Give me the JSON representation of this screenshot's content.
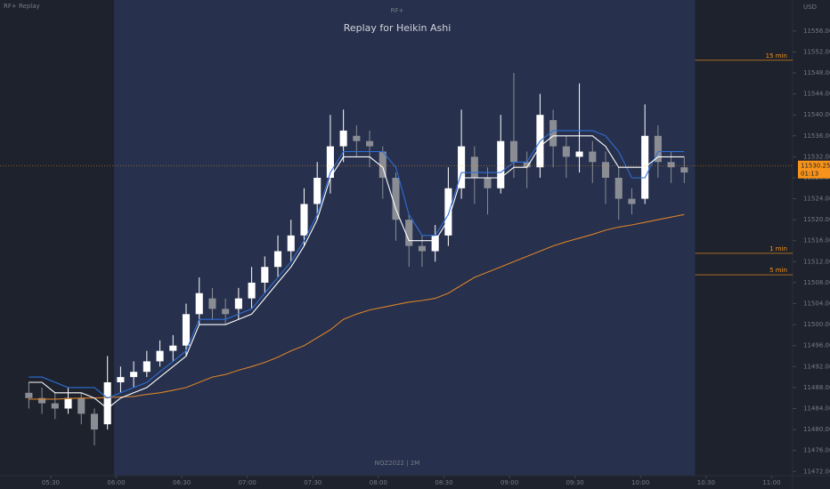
{
  "chart_data": {
    "type": "candlestick",
    "header": "RF+ Replay",
    "subtitle": "RF+",
    "title": "Replay for Heikin Ashi",
    "symbol": "NQZ2022 | 2M",
    "currency": "USD",
    "x": [
      320,
      326,
      332,
      338,
      344,
      350,
      356,
      362,
      368,
      374,
      380,
      386,
      392,
      398,
      404,
      410,
      416,
      422,
      428,
      434,
      440,
      446,
      452,
      458,
      464,
      470,
      476,
      482,
      488,
      494,
      500,
      506,
      512,
      518,
      524,
      530,
      536,
      542,
      548,
      554,
      560,
      566,
      572,
      578,
      584,
      590,
      596,
      602,
      608,
      614,
      620
    ],
    "open": [
      11487,
      11486,
      11485,
      11484,
      11486,
      11483,
      11481,
      11489,
      11490,
      11491,
      11493,
      11495,
      11496,
      11502,
      11505,
      11503,
      11503,
      11505,
      11508,
      11511,
      11514,
      11517,
      11523,
      11528,
      11534,
      11536,
      11535,
      11533,
      11528,
      11520,
      11515,
      11514,
      11517,
      11526,
      11532,
      11528,
      11526,
      11535,
      11531,
      11530,
      11539,
      11534,
      11532,
      11533,
      11531,
      11528,
      11524,
      11524,
      11536,
      11531,
      11530
    ],
    "high": [
      11489,
      11488,
      11487,
      11488,
      11487,
      11484,
      11494,
      11492,
      11493,
      11495,
      11497,
      11498,
      11504,
      11509,
      11507,
      11505,
      11507,
      11511,
      11513,
      11517,
      11520,
      11526,
      11531,
      11540,
      11541,
      11538,
      11537,
      11534,
      11529,
      11521,
      11517,
      11519,
      11530,
      11541,
      11534,
      11530,
      11540,
      11548,
      11533,
      11544,
      11541,
      11536,
      11546,
      11535,
      11533,
      11530,
      11526,
      11542,
      11538,
      11533,
      11532
    ],
    "low": [
      11484,
      11483,
      11482,
      11483,
      11481,
      11477,
      11480,
      11487,
      11488,
      11490,
      11492,
      11493,
      11494,
      11500,
      11501,
      11500,
      11501,
      11503,
      11506,
      11509,
      11512,
      11515,
      11520,
      11525,
      11531,
      11532,
      11530,
      11524,
      11516,
      11511,
      11511,
      11512,
      11515,
      11524,
      11523,
      11521,
      11525,
      11528,
      11526,
      11528,
      11530,
      11528,
      11529,
      11527,
      11523,
      11520,
      11521,
      11523,
      11528,
      11527,
      11527
    ],
    "close": [
      11486,
      11485,
      11484,
      11486,
      11483,
      11480,
      11489,
      11490,
      11491,
      11493,
      11495,
      11496,
      11502,
      11506,
      11503,
      11502,
      11505,
      11508,
      11511,
      11514,
      11517,
      11523,
      11528,
      11534,
      11537,
      11535,
      11534,
      11528,
      11520,
      11515,
      11514,
      11517,
      11526,
      11534,
      11528,
      11526,
      11535,
      11531,
      11530,
      11540,
      11534,
      11532,
      11533,
      11531,
      11528,
      11524,
      11523,
      11536,
      11531,
      11530,
      11529
    ],
    "up_color": "#ffffff",
    "down_color": "#8a8d94",
    "lines": [
      {
        "color": "#d9822b",
        "values": [
          11485.8,
          11485.8,
          11485.8,
          11485.9,
          11486,
          11486,
          11486.1,
          11486.2,
          11486.3,
          11486.7,
          11487,
          11487.5,
          11488,
          11489,
          11490,
          11490.5,
          11491.3,
          11492,
          11492.8,
          11493.8,
          11495,
          11496,
          11497.5,
          11499,
          11501,
          11502,
          11502.8,
          11503.3,
          11503.8,
          11504.3,
          11504.6,
          11505,
          11506,
          11507.5,
          11509,
          11510,
          11511,
          11512,
          11513,
          11514,
          11515,
          11515.8,
          11516.5,
          11517.2,
          11518,
          11518.6,
          11519,
          11519.5,
          11520,
          11520.5,
          11521
        ]
      },
      {
        "color": "#2f6fd6",
        "values": [
          11490,
          11490,
          11489,
          11488,
          11488,
          11488,
          11486,
          11487,
          11488,
          11489,
          11491,
          11493,
          11495,
          11501,
          11501,
          11501,
          11502,
          11503,
          11506,
          11509,
          11512,
          11516,
          11521,
          11529,
          11533,
          11533,
          11533,
          11533,
          11530,
          11521,
          11517,
          11517,
          11521,
          11529,
          11529,
          11529,
          11529,
          11531,
          11531,
          11535,
          11537,
          11537,
          11537,
          11537,
          11536,
          11533,
          11528,
          11528,
          11533,
          11533,
          11533
        ]
      },
      {
        "color": "#ffffff",
        "values": [
          11489,
          11489,
          11487,
          11487,
          11487,
          11486,
          11484,
          11486,
          11487,
          11488,
          11490,
          11492,
          11494,
          11500,
          11500,
          11500,
          11501,
          11502,
          11505,
          11508,
          11511,
          11515,
          11520,
          11528,
          11532,
          11532,
          11532,
          11530,
          11522,
          11516,
          11516,
          11516,
          11520,
          11528,
          11528,
          11528,
          11528,
          11530,
          11530,
          11534,
          11536,
          11536,
          11536,
          11536,
          11534,
          11530,
          11530,
          11530,
          11532,
          11532,
          11532
        ]
      }
    ],
    "replay_range": [
      359,
      625
    ],
    "levels": [
      {
        "label": "15 min",
        "value": 11550.4
      },
      {
        "label": "1 min",
        "value": 11513.6
      },
      {
        "label": "5 min",
        "value": 11509.5
      }
    ],
    "level_color": "#f7931a",
    "last_price": {
      "value": 11530.25,
      "countdown": "01:13"
    },
    "xlim": [
      306.8,
      669.6
    ],
    "ylim": [
      11471.2,
      11561.9
    ],
    "xticks": [
      {
        "value": 330,
        "label": "05:30"
      },
      {
        "value": 360,
        "label": "06:00"
      },
      {
        "value": 390,
        "label": "06:30"
      },
      {
        "value": 420,
        "label": "07:00"
      },
      {
        "value": 450,
        "label": "07:30"
      },
      {
        "value": 480,
        "label": "08:00"
      },
      {
        "value": 510,
        "label": "08:30"
      },
      {
        "value": 540,
        "label": "09:00"
      },
      {
        "value": 570,
        "label": "09:30"
      },
      {
        "value": 600,
        "label": "10:00"
      },
      {
        "value": 630,
        "label": "10:30"
      },
      {
        "value": 660,
        "label": "11:00"
      }
    ],
    "yticks": [
      {
        "value": 11472,
        "label": "11472.00"
      },
      {
        "value": 11476,
        "label": "11476.00"
      },
      {
        "value": 11480,
        "label": "11480.00"
      },
      {
        "value": 11484,
        "label": "11484.00"
      },
      {
        "value": 11488,
        "label": "11488.00"
      },
      {
        "value": 11492,
        "label": "11492.00"
      },
      {
        "value": 11496,
        "label": "11496.00"
      },
      {
        "value": 11500,
        "label": "11500.00"
      },
      {
        "value": 11504,
        "label": "11504.00"
      },
      {
        "value": 11508,
        "label": "11508.00"
      },
      {
        "value": 11512,
        "label": "11512.00"
      },
      {
        "value": 11516,
        "label": "11516.00"
      },
      {
        "value": 11520,
        "label": "11520.00"
      },
      {
        "value": 11524,
        "label": "11524.00"
      },
      {
        "value": 11528,
        "label": "11528.00"
      },
      {
        "value": 11532,
        "label": "11532.00"
      },
      {
        "value": 11536,
        "label": "11536.00"
      },
      {
        "value": 11540,
        "label": "11540.00"
      },
      {
        "value": 11544,
        "label": "11544.00"
      },
      {
        "value": 11548,
        "label": "11548.00"
      },
      {
        "value": 11552,
        "label": "11552.00"
      },
      {
        "value": 11556,
        "label": "11556.00"
      }
    ]
  }
}
